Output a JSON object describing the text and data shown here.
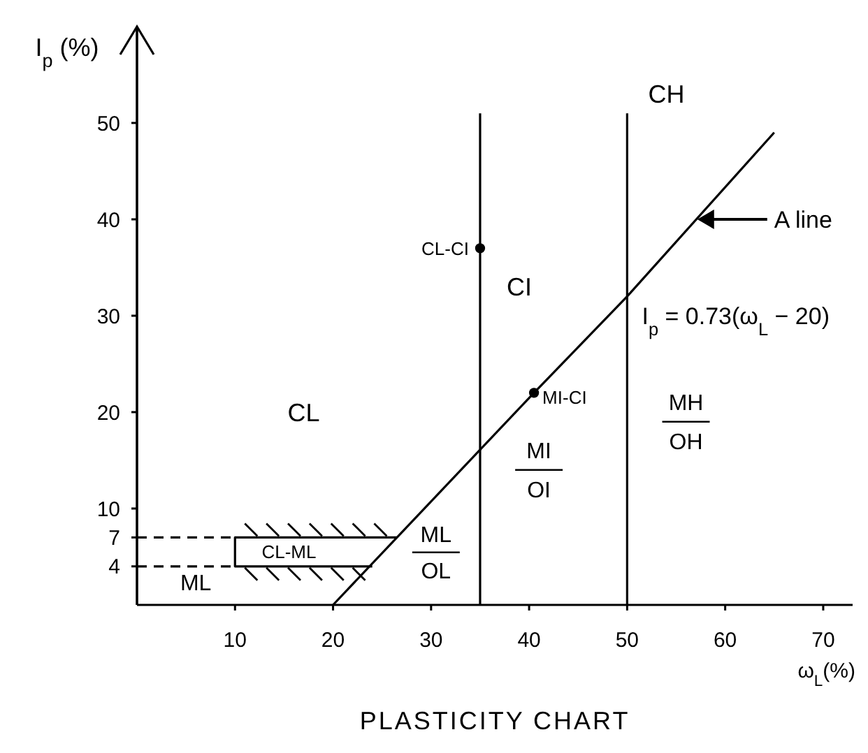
{
  "chart_data": {
    "type": "line",
    "title": "PLASTICITY CHART",
    "xlabel": "ω$_{L}$(%)",
    "ylabel": "I$_{p}$ (%)",
    "xlim": [
      0,
      73
    ],
    "xticks": [
      10,
      20,
      30,
      40,
      50,
      60,
      70
    ],
    "ylim": [
      0,
      60
    ],
    "yticks": [
      4,
      7,
      10,
      20,
      30,
      40,
      50
    ],
    "grid": false,
    "series": [
      {
        "color": "#000000",
        "x": [
          20,
          40.5,
          50,
          65
        ],
        "values": [
          0,
          22,
          32,
          49
        ]
      },
      {
        "color": "#000000",
        "x": [
          35,
          35
        ],
        "values": [
          0,
          51
        ]
      },
      {
        "color": "#000000",
        "x": [
          50,
          50
        ],
        "values": [
          0,
          51
        ]
      },
      {
        "type": "line",
        "color": "#000000",
        "line_style": "dashed",
        "x": [
          0,
          10
        ],
        "values": [
          7,
          7
        ]
      },
      {
        "type": "line",
        "color": "#000000",
        "line_style": "dashed",
        "x": [
          0,
          10
        ],
        "values": [
          4,
          4
        ]
      },
      {
        "type": "line",
        "color": "#000000",
        "x": [
          24,
          10,
          10,
          26.5
        ],
        "values": [
          4,
          4,
          7,
          7
        ]
      },
      {
        "type": "scatter",
        "color": "#000000",
        "marker": "circle",
        "x": [
          35,
          40.5
        ],
        "values": [
          37,
          22
        ]
      }
    ],
    "annotations": [
      {
        "text": "CL-CI",
        "x": 35,
        "y": 37
      },
      {
        "text": "MI-CI",
        "x": 40.5,
        "y": 22
      },
      "CL",
      "CI",
      "CH",
      "MI",
      "OI",
      "MH",
      "OH",
      "ML",
      "OL",
      "CL-ML",
      "ML",
      "A line",
      "I$_{p}$ = 0.73(ω$_{L}$ − 20)"
    ]
  }
}
